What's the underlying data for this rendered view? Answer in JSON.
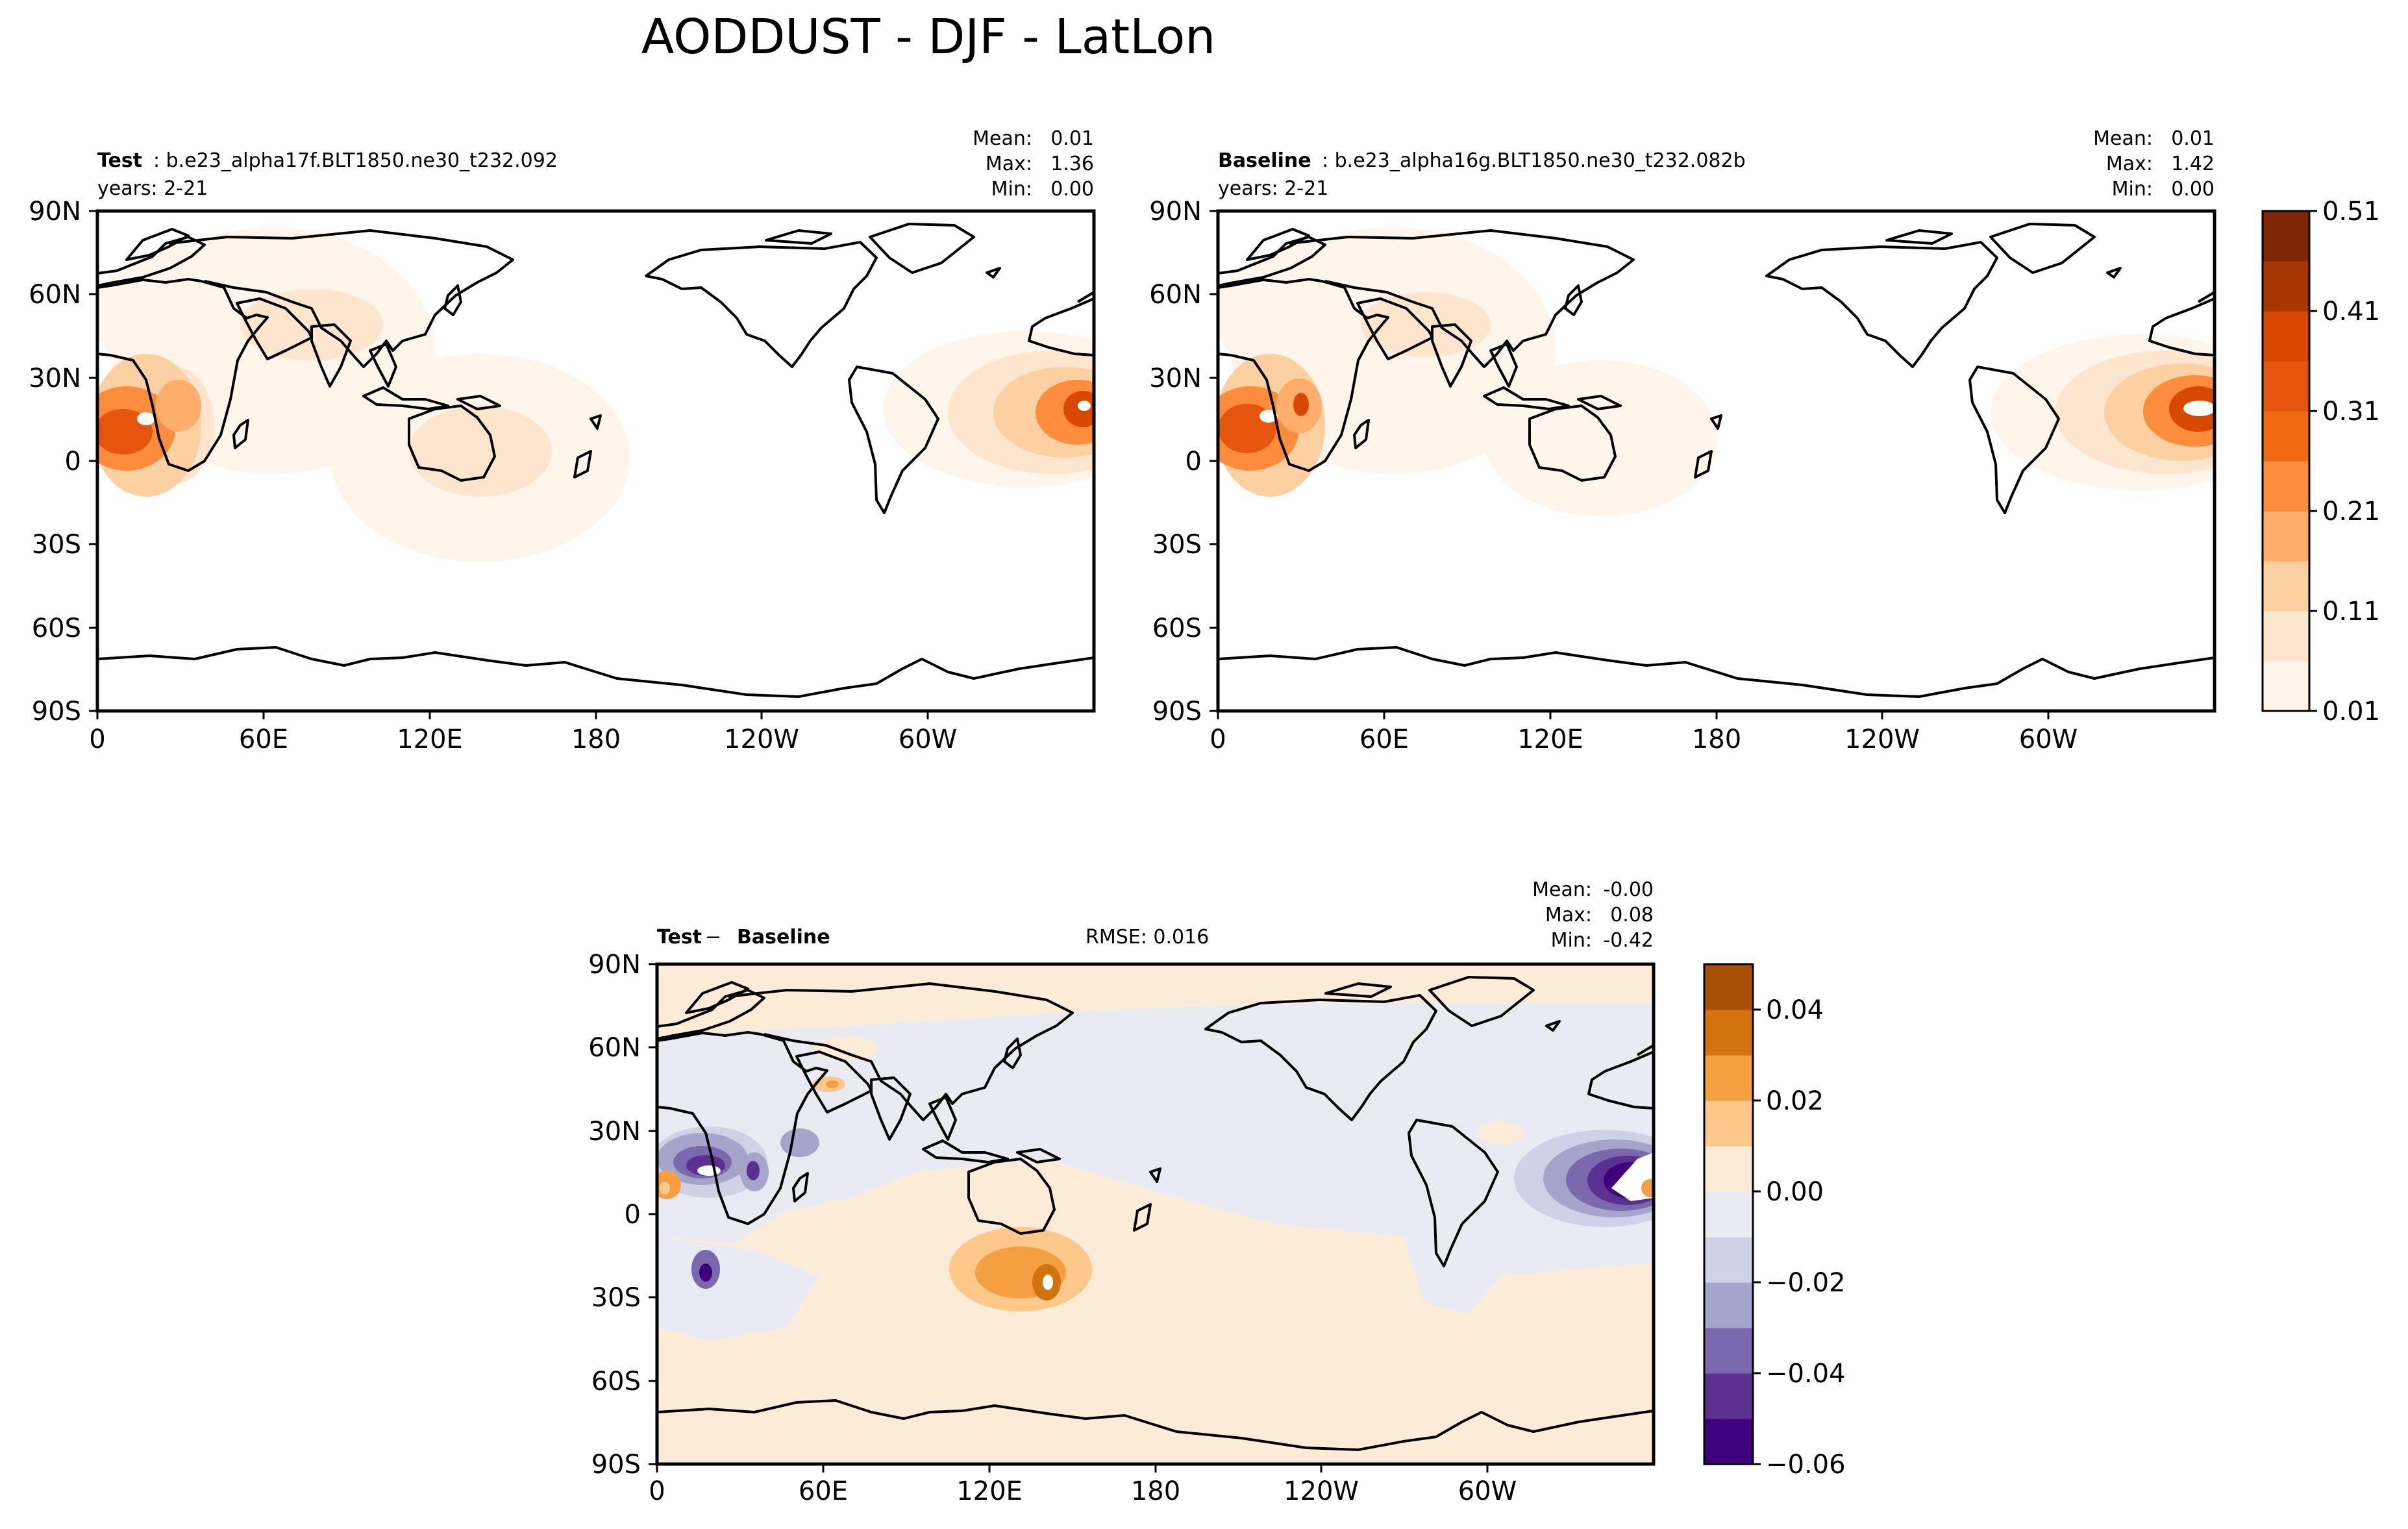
{
  "figure": {
    "title": "AODDUST - DJF - LatLon"
  },
  "panels": {
    "test": {
      "label_bold": "Test",
      "label_rest": ": b.e23_alpha17f.BLT1850.ne30_t232.092",
      "years": "years: 2-21",
      "stats": [
        {
          "label": "Mean:",
          "value": "0.01"
        },
        {
          "label": "Max:",
          "value": "1.36"
        },
        {
          "label": "Min:",
          "value": "0.00"
        }
      ]
    },
    "baseline": {
      "label_bold": "Baseline",
      "label_rest": ": b.e23_alpha16g.BLT1850.ne30_t232.082b",
      "years": "years: 2-21",
      "stats": [
        {
          "label": "Mean:",
          "value": "0.01"
        },
        {
          "label": "Max:",
          "value": "1.42"
        },
        {
          "label": "Min:",
          "value": "0.00"
        }
      ]
    },
    "diff": {
      "label_bold_a": "Test",
      "label_minus": " − ",
      "label_bold_b": "Baseline",
      "rmse": "RMSE: 0.016",
      "stats": [
        {
          "label": "Mean:",
          "value": "-0.00"
        },
        {
          "label": "Max:",
          "value": "0.08"
        },
        {
          "label": "Min:",
          "value": "-0.42"
        }
      ]
    }
  },
  "axes": {
    "lat_ticks": [
      "90N",
      "60N",
      "30N",
      "0",
      "30S",
      "60S",
      "90S"
    ],
    "lon_ticks": [
      "0",
      "60E",
      "120E",
      "180",
      "120W",
      "60W"
    ]
  },
  "colorbars": {
    "main": {
      "colors": [
        "#fff5eb",
        "#fee6ce",
        "#fdd0a2",
        "#fdae6b",
        "#fd8d3c",
        "#f16913",
        "#e6550d",
        "#d94801",
        "#a63603",
        "#7f2704"
      ],
      "labels": [
        "0.01",
        "0.11",
        "0.21",
        "0.31",
        "0.41",
        "0.51"
      ]
    },
    "diff": {
      "colors": [
        "#3f007d",
        "#5a3191",
        "#7b69ad",
        "#a7a4cc",
        "#d0d1e6",
        "#eaeaf2",
        "#fbebd7",
        "#fdc98a",
        "#f4a042",
        "#d2730f",
        "#a85005"
      ],
      "labels": [
        "−0.06",
        "−0.04",
        "−0.02",
        "0.00",
        "0.02",
        "0.04"
      ]
    }
  },
  "chart_data": [
    {
      "type": "heatmap",
      "title": "Test",
      "variable": "AODDUST",
      "season": "DJF",
      "projection": "PlateCarree (central longitude 180)",
      "xlabel": "",
      "ylabel": "",
      "xticks": [
        "0",
        "60E",
        "120E",
        "180",
        "120W",
        "60W"
      ],
      "yticks": [
        "90N",
        "60N",
        "30N",
        "0",
        "30S",
        "60S",
        "90S"
      ],
      "colorbar_levels": [
        "0.01",
        "0.11",
        "0.21",
        "0.31",
        "0.41",
        "0.51"
      ],
      "stats": {
        "mean": 0.01,
        "max": 1.36,
        "min": 0.0
      },
      "colormap": "Oranges"
    },
    {
      "type": "heatmap",
      "title": "Baseline",
      "variable": "AODDUST",
      "season": "DJF",
      "projection": "PlateCarree (central longitude 180)",
      "xlabel": "",
      "ylabel": "",
      "xticks": [
        "0",
        "60E",
        "120E",
        "180",
        "120W",
        "60W"
      ],
      "yticks": [
        "90N",
        "60N",
        "30N",
        "0",
        "30S",
        "60S",
        "90S"
      ],
      "colorbar_levels": [
        "0.01",
        "0.11",
        "0.21",
        "0.31",
        "0.41",
        "0.51"
      ],
      "stats": {
        "mean": 0.01,
        "max": 1.42,
        "min": 0.0
      },
      "colormap": "Oranges"
    },
    {
      "type": "heatmap",
      "title": "Test − Baseline",
      "variable": "AODDUST",
      "season": "DJF",
      "projection": "PlateCarree (central longitude 180)",
      "xlabel": "",
      "ylabel": "",
      "xticks": [
        "0",
        "60E",
        "120E",
        "180",
        "120W",
        "60W"
      ],
      "yticks": [
        "90N",
        "60N",
        "30N",
        "0",
        "30S",
        "60S",
        "90S"
      ],
      "colorbar_levels": [
        "−0.06",
        "−0.04",
        "−0.02",
        "0.00",
        "0.02",
        "0.04"
      ],
      "stats": {
        "mean": -0.0,
        "max": 0.08,
        "min": -0.42,
        "rmse": 0.016
      },
      "colormap": "PuOr_r"
    }
  ]
}
